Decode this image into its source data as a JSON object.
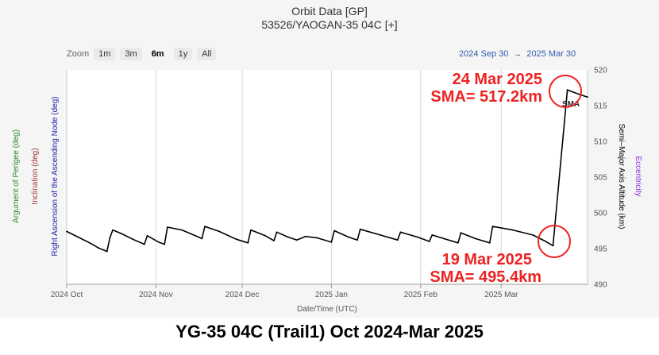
{
  "title": "Orbit Data [GP]",
  "subtitle": "53526/YAOGAN-35 04C [+]",
  "zoom": {
    "label": "Zoom",
    "buttons": [
      "1m",
      "3m",
      "6m",
      "1y",
      "All"
    ],
    "active": "6m"
  },
  "date_range": {
    "start": "2024 Sep 30",
    "arrow": "→",
    "end": "2025 Mar 30"
  },
  "left_axis_titles": [
    {
      "text": "Argument of Perigee (deg)",
      "color": "#2e8b2e"
    },
    {
      "text": "Inclination (deg)",
      "color": "#a33a3a"
    },
    {
      "text": "Right Ascension of the Ascending Node (deg)",
      "color": "#2222aa"
    }
  ],
  "right_axis_titles": [
    {
      "text": "Semi–Major Axis Altitude (km)",
      "color": "#000000"
    },
    {
      "text": "Eccentricity",
      "color": "#8a2be2"
    }
  ],
  "footer": "YG-35 04C (Trail1) Oct 2024-Mar 2025",
  "annotations": {
    "peak_date": "24 Mar 2025",
    "peak_sma": "SMA= 517.2km",
    "low_date": "19 Mar 2025",
    "low_sma": "SMA= 495.4km",
    "color": "#ee2222"
  },
  "series_label": "SMA",
  "chart_data": {
    "type": "line",
    "xlabel": "Date/Time (UTC)",
    "ylabel": "Semi–Major Axis Altitude (km)",
    "x_range": [
      "2024-10-01",
      "2025-03-31"
    ],
    "ylim": [
      490,
      520
    ],
    "x_ticks": [
      {
        "date": "2024-10-01",
        "label": "2024 Oct"
      },
      {
        "date": "2024-11-01",
        "label": "2024 Nov"
      },
      {
        "date": "2024-12-01",
        "label": "2024 Dec"
      },
      {
        "date": "2025-01-01",
        "label": "2025 Jan"
      },
      {
        "date": "2025-02-01",
        "label": "2025 Feb"
      },
      {
        "date": "2025-03-01",
        "label": "2025 Mar"
      }
    ],
    "y_ticks": [
      490,
      495,
      500,
      505,
      510,
      515,
      520
    ],
    "grid": "vertical",
    "series": [
      {
        "name": "SMA",
        "color": "#000000",
        "points": [
          [
            "2024-10-01",
            497.4
          ],
          [
            "2024-10-05",
            496.6
          ],
          [
            "2024-10-09",
            495.8
          ],
          [
            "2024-10-12",
            495.1
          ],
          [
            "2024-10-15",
            494.6
          ],
          [
            "2024-10-16",
            496.5
          ],
          [
            "2024-10-17",
            497.6
          ],
          [
            "2024-10-20",
            497.1
          ],
          [
            "2024-10-24",
            496.3
          ],
          [
            "2024-10-28",
            495.6
          ],
          [
            "2024-10-29",
            496.8
          ],
          [
            "2024-11-02",
            495.9
          ],
          [
            "2024-11-04",
            495.6
          ],
          [
            "2024-11-05",
            498.0
          ],
          [
            "2024-11-10",
            497.6
          ],
          [
            "2024-11-13",
            497.1
          ],
          [
            "2024-11-17",
            496.4
          ],
          [
            "2024-11-18",
            498.1
          ],
          [
            "2024-11-23",
            497.4
          ],
          [
            "2024-11-29",
            496.3
          ],
          [
            "2024-12-03",
            495.8
          ],
          [
            "2024-12-04",
            497.6
          ],
          [
            "2024-12-09",
            496.8
          ],
          [
            "2024-12-12",
            496.1
          ],
          [
            "2024-12-13",
            497.3
          ],
          [
            "2024-12-17",
            496.6
          ],
          [
            "2024-12-20",
            496.2
          ],
          [
            "2024-12-23",
            496.7
          ],
          [
            "2024-12-27",
            496.5
          ],
          [
            "2025-01-01",
            495.9
          ],
          [
            "2025-01-02",
            497.5
          ],
          [
            "2025-01-07",
            496.6
          ],
          [
            "2025-01-10",
            496.2
          ],
          [
            "2025-01-11",
            497.7
          ],
          [
            "2025-01-18",
            496.9
          ],
          [
            "2025-01-24",
            496.2
          ],
          [
            "2025-01-25",
            497.3
          ],
          [
            "2025-01-31",
            496.6
          ],
          [
            "2025-02-04",
            496.0
          ],
          [
            "2025-02-05",
            496.9
          ],
          [
            "2025-02-09",
            496.4
          ],
          [
            "2025-02-14",
            495.8
          ],
          [
            "2025-02-15",
            497.2
          ],
          [
            "2025-02-20",
            496.4
          ],
          [
            "2025-02-25",
            495.8
          ],
          [
            "2025-02-26",
            498.1
          ],
          [
            "2025-03-05",
            497.6
          ],
          [
            "2025-03-12",
            496.9
          ],
          [
            "2025-03-16",
            496.1
          ],
          [
            "2025-03-19",
            495.4
          ],
          [
            "2025-03-24",
            517.2
          ],
          [
            "2025-03-28",
            516.6
          ],
          [
            "2025-03-31",
            516.2
          ]
        ]
      }
    ]
  }
}
